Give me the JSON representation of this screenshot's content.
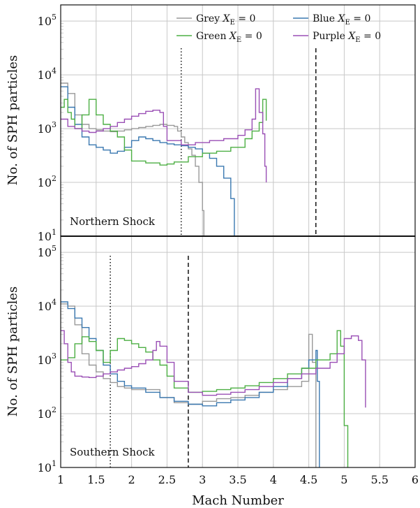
{
  "chart_data": {
    "type": "line",
    "xlabel": "Mach Number",
    "ylabel": "No. of SPH particles",
    "xlim": [
      1,
      6
    ],
    "ylim": [
      10,
      200000
    ],
    "yscale": "log",
    "grid": true,
    "x_ticks": [
      "1",
      "1.5",
      "2",
      "2.5",
      "3",
      "3.5",
      "4",
      "4.5",
      "5",
      "5.5",
      "6"
    ],
    "legend": {
      "placement": "top-right",
      "entries": [
        {
          "label": "Grey",
          "math": "X",
          "sub": "E",
          "rhs": " = 0",
          "color": "#999999"
        },
        {
          "label": "Blue",
          "math": "X",
          "sub": "E",
          "rhs": " = 0",
          "color": "#3a78b0"
        },
        {
          "label": "Green",
          "math": "X",
          "sub": "E",
          "rhs": " = 0",
          "color": "#4caf43"
        },
        {
          "label": "Purple",
          "math": "X",
          "sub": "E",
          "rhs": " = 0",
          "color": "#9a4fb5"
        }
      ]
    },
    "panels": [
      {
        "annotation": "Northern Shock",
        "y_ticks": [
          "10^1",
          "10^2",
          "10^3",
          "10^4",
          "10^5"
        ],
        "vlines": [
          {
            "x": 2.7,
            "style": "dotted"
          },
          {
            "x": 4.6,
            "style": "dashed"
          }
        ],
        "series": [
          {
            "color": "#999999",
            "x": [
              1.0,
              1.1,
              1.2,
              1.3,
              1.4,
              1.5,
              1.6,
              1.7,
              1.8,
              1.9,
              2.0,
              2.1,
              2.2,
              2.3,
              2.4,
              2.5,
              2.6,
              2.65,
              2.7,
              2.75,
              2.8,
              2.85,
              2.9,
              2.95,
              3.0,
              3.02
            ],
            "y": [
              7000,
              4500,
              1800,
              1200,
              1000,
              950,
              900,
              880,
              900,
              950,
              1000,
              1050,
              1100,
              1150,
              1200,
              1150,
              1100,
              900,
              700,
              550,
              420,
              320,
              200,
              100,
              30,
              10
            ]
          },
          {
            "color": "#3a78b0",
            "x": [
              1.0,
              1.1,
              1.2,
              1.3,
              1.4,
              1.5,
              1.6,
              1.7,
              1.8,
              1.9,
              2.0,
              2.1,
              2.2,
              2.3,
              2.4,
              2.5,
              2.6,
              2.7,
              2.8,
              2.9,
              3.0,
              3.1,
              3.2,
              3.3,
              3.4,
              3.45
            ],
            "y": [
              6000,
              2500,
              1200,
              700,
              500,
              450,
              400,
              350,
              380,
              450,
              600,
              700,
              650,
              600,
              550,
              520,
              500,
              480,
              450,
              420,
              350,
              280,
              200,
              120,
              50,
              10
            ]
          },
          {
            "color": "#4caf43",
            "x": [
              1.0,
              1.05,
              1.1,
              1.15,
              1.2,
              1.3,
              1.4,
              1.5,
              1.6,
              1.7,
              1.8,
              1.9,
              2.0,
              2.2,
              2.4,
              2.5,
              2.6,
              2.8,
              3.0,
              3.2,
              3.4,
              3.6,
              3.7,
              3.8,
              3.85,
              3.9
            ],
            "y": [
              2500,
              3500,
              2000,
              1500,
              1000,
              1800,
              3500,
              1800,
              1200,
              900,
              700,
              400,
              250,
              230,
              210,
              220,
              240,
              300,
              350,
              380,
              450,
              650,
              900,
              1300,
              3500,
              1400
            ]
          },
          {
            "color": "#9a4fb5",
            "x": [
              1.0,
              1.1,
              1.2,
              1.3,
              1.4,
              1.5,
              1.6,
              1.7,
              1.8,
              1.9,
              2.0,
              2.1,
              2.2,
              2.3,
              2.4,
              2.45,
              2.5,
              2.7,
              2.9,
              3.1,
              3.3,
              3.5,
              3.6,
              3.7,
              3.75,
              3.8,
              3.85,
              3.88,
              3.9
            ],
            "y": [
              1500,
              1100,
              1000,
              900,
              850,
              900,
              1000,
              1100,
              1300,
              1500,
              1700,
              1900,
              2100,
              2200,
              2000,
              1100,
              600,
              500,
              550,
              600,
              650,
              750,
              950,
              1500,
              5500,
              2000,
              800,
              200,
              100
            ]
          }
        ]
      },
      {
        "annotation": "Southern Shock",
        "y_ticks": [
          "10^1",
          "10^2",
          "10^3",
          "10^4",
          "10^5"
        ],
        "vlines": [
          {
            "x": 1.7,
            "style": "dotted"
          },
          {
            "x": 2.8,
            "style": "dashed"
          }
        ],
        "series": [
          {
            "color": "#999999",
            "x": [
              1.0,
              1.1,
              1.2,
              1.3,
              1.4,
              1.5,
              1.6,
              1.7,
              1.8,
              1.9,
              2.0,
              2.2,
              2.4,
              2.6,
              2.8,
              3.0,
              3.2,
              3.4,
              3.6,
              3.8,
              4.0,
              4.2,
              4.4,
              4.5,
              4.55,
              4.6
            ],
            "y": [
              11000,
              10000,
              4500,
              1300,
              800,
              600,
              450,
              380,
              320,
              300,
              280,
              280,
              200,
              160,
              150,
              170,
              190,
              200,
              220,
              250,
              280,
              320,
              400,
              3000,
              900,
              10
            ]
          },
          {
            "color": "#3a78b0",
            "x": [
              1.0,
              1.1,
              1.2,
              1.3,
              1.4,
              1.5,
              1.6,
              1.7,
              1.8,
              1.9,
              2.0,
              2.2,
              2.4,
              2.6,
              2.8,
              3.0,
              3.2,
              3.4,
              3.6,
              3.8,
              4.0,
              4.2,
              4.4,
              4.5,
              4.6,
              4.62,
              4.65
            ],
            "y": [
              12000,
              9000,
              6000,
              4000,
              2500,
              1500,
              800,
              550,
              400,
              330,
              300,
              250,
              200,
              170,
              150,
              140,
              160,
              180,
              200,
              250,
              320,
              450,
              700,
              1000,
              1500,
              400,
              10
            ]
          },
          {
            "color": "#4caf43",
            "x": [
              1.0,
              1.1,
              1.2,
              1.3,
              1.4,
              1.5,
              1.6,
              1.7,
              1.8,
              1.9,
              2.0,
              2.1,
              2.2,
              2.3,
              2.4,
              2.5,
              2.6,
              2.8,
              3.0,
              3.2,
              3.4,
              3.6,
              3.8,
              4.0,
              4.2,
              4.4,
              4.6,
              4.8,
              4.9,
              4.95,
              5.0,
              5.05
            ],
            "y": [
              1000,
              1100,
              2000,
              2700,
              2200,
              1500,
              900,
              1500,
              2500,
              2300,
              2000,
              1700,
              1400,
              1000,
              800,
              500,
              300,
              250,
              260,
              280,
              300,
              330,
              380,
              450,
              550,
              700,
              1000,
              1300,
              3500,
              1800,
              60,
              10
            ]
          },
          {
            "color": "#9a4fb5",
            "x": [
              1.0,
              1.05,
              1.1,
              1.15,
              1.2,
              1.3,
              1.4,
              1.5,
              1.6,
              1.7,
              1.8,
              1.9,
              2.0,
              2.1,
              2.2,
              2.3,
              2.35,
              2.4,
              2.5,
              2.6,
              2.8,
              3.0,
              3.2,
              3.4,
              3.6,
              3.8,
              4.0,
              4.2,
              4.4,
              4.6,
              4.8,
              4.9,
              5.0,
              5.1,
              5.2,
              5.25,
              5.3
            ],
            "y": [
              3500,
              2000,
              900,
              600,
              500,
              480,
              470,
              500,
              550,
              600,
              650,
              700,
              750,
              850,
              1000,
              1500,
              2200,
              1800,
              900,
              400,
              250,
              220,
              230,
              250,
              280,
              320,
              380,
              450,
              550,
              700,
              900,
              1300,
              2500,
              2800,
              2300,
              1000,
              130
            ]
          }
        ]
      }
    ]
  }
}
